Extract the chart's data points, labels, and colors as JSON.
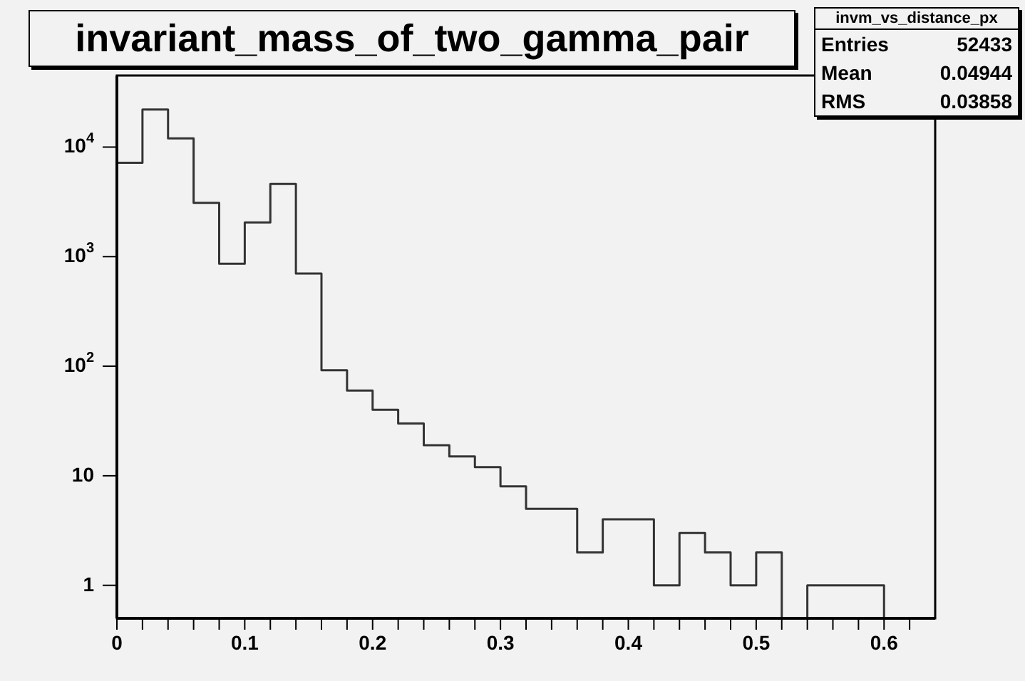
{
  "chart_data": {
    "type": "histogram",
    "title": "invariant_mass_of_two_gamma_pair",
    "bins": [
      0,
      0.02,
      0.04,
      0.06,
      0.08,
      0.1,
      0.12,
      0.14,
      0.16,
      0.18,
      0.2,
      0.22,
      0.24,
      0.26,
      0.28,
      0.3,
      0.32,
      0.34,
      0.36,
      0.38,
      0.4,
      0.42,
      0.44,
      0.46,
      0.48,
      0.5,
      0.52,
      0.54,
      0.56,
      0.58,
      0.6
    ],
    "values": [
      7200,
      22000,
      12000,
      3100,
      860,
      2050,
      4600,
      700,
      92,
      60,
      40,
      30,
      19,
      15,
      12,
      8,
      5,
      5,
      2,
      4,
      4,
      1,
      3,
      2,
      1,
      2,
      null,
      1,
      1,
      1
    ],
    "color": "#333333",
    "log": "y",
    "xlim": [
      0,
      0.64
    ],
    "xticks": [
      0,
      {
        "value": 0.02,
        "label": null
      },
      {
        "value": 0.04,
        "label": null
      },
      {
        "value": 0.06,
        "label": null
      },
      {
        "value": 0.08,
        "label": null
      },
      0.1,
      {
        "value": 0.12,
        "label": null
      },
      {
        "value": 0.14,
        "label": null
      },
      {
        "value": 0.16,
        "label": null
      },
      {
        "value": 0.18,
        "label": null
      },
      0.2,
      {
        "value": 0.22,
        "label": null
      },
      {
        "value": 0.24,
        "label": null
      },
      {
        "value": 0.26,
        "label": null
      },
      {
        "value": 0.28,
        "label": null
      },
      0.3,
      {
        "value": 0.32,
        "label": null
      },
      {
        "value": 0.34,
        "label": null
      },
      {
        "value": 0.36,
        "label": null
      },
      {
        "value": 0.38,
        "label": null
      },
      0.4,
      {
        "value": 0.42,
        "label": null
      },
      {
        "value": 0.44,
        "label": null
      },
      {
        "value": 0.46,
        "label": null
      },
      {
        "value": 0.48,
        "label": null
      },
      0.5,
      {
        "value": 0.52,
        "label": null
      },
      {
        "value": 0.54,
        "label": null
      },
      {
        "value": 0.56,
        "label": null
      },
      {
        "value": 0.58,
        "label": null
      },
      0.6,
      {
        "value": 0.62,
        "label": null
      }
    ],
    "ylim": [
      0.5,
      45000
    ],
    "yticks": [
      1,
      10,
      {
        "value": 100,
        "label": "10$^{2}$"
      },
      {
        "value": 1000,
        "label": "10$^{3}$"
      },
      {
        "value": 10000,
        "label": "10$^{4}$"
      }
    ],
    "annotations": [
      "invm_vs_distance_px",
      "Entries 52433",
      "Mean 0.04944",
      "RMS 0.03858"
    ]
  }
}
